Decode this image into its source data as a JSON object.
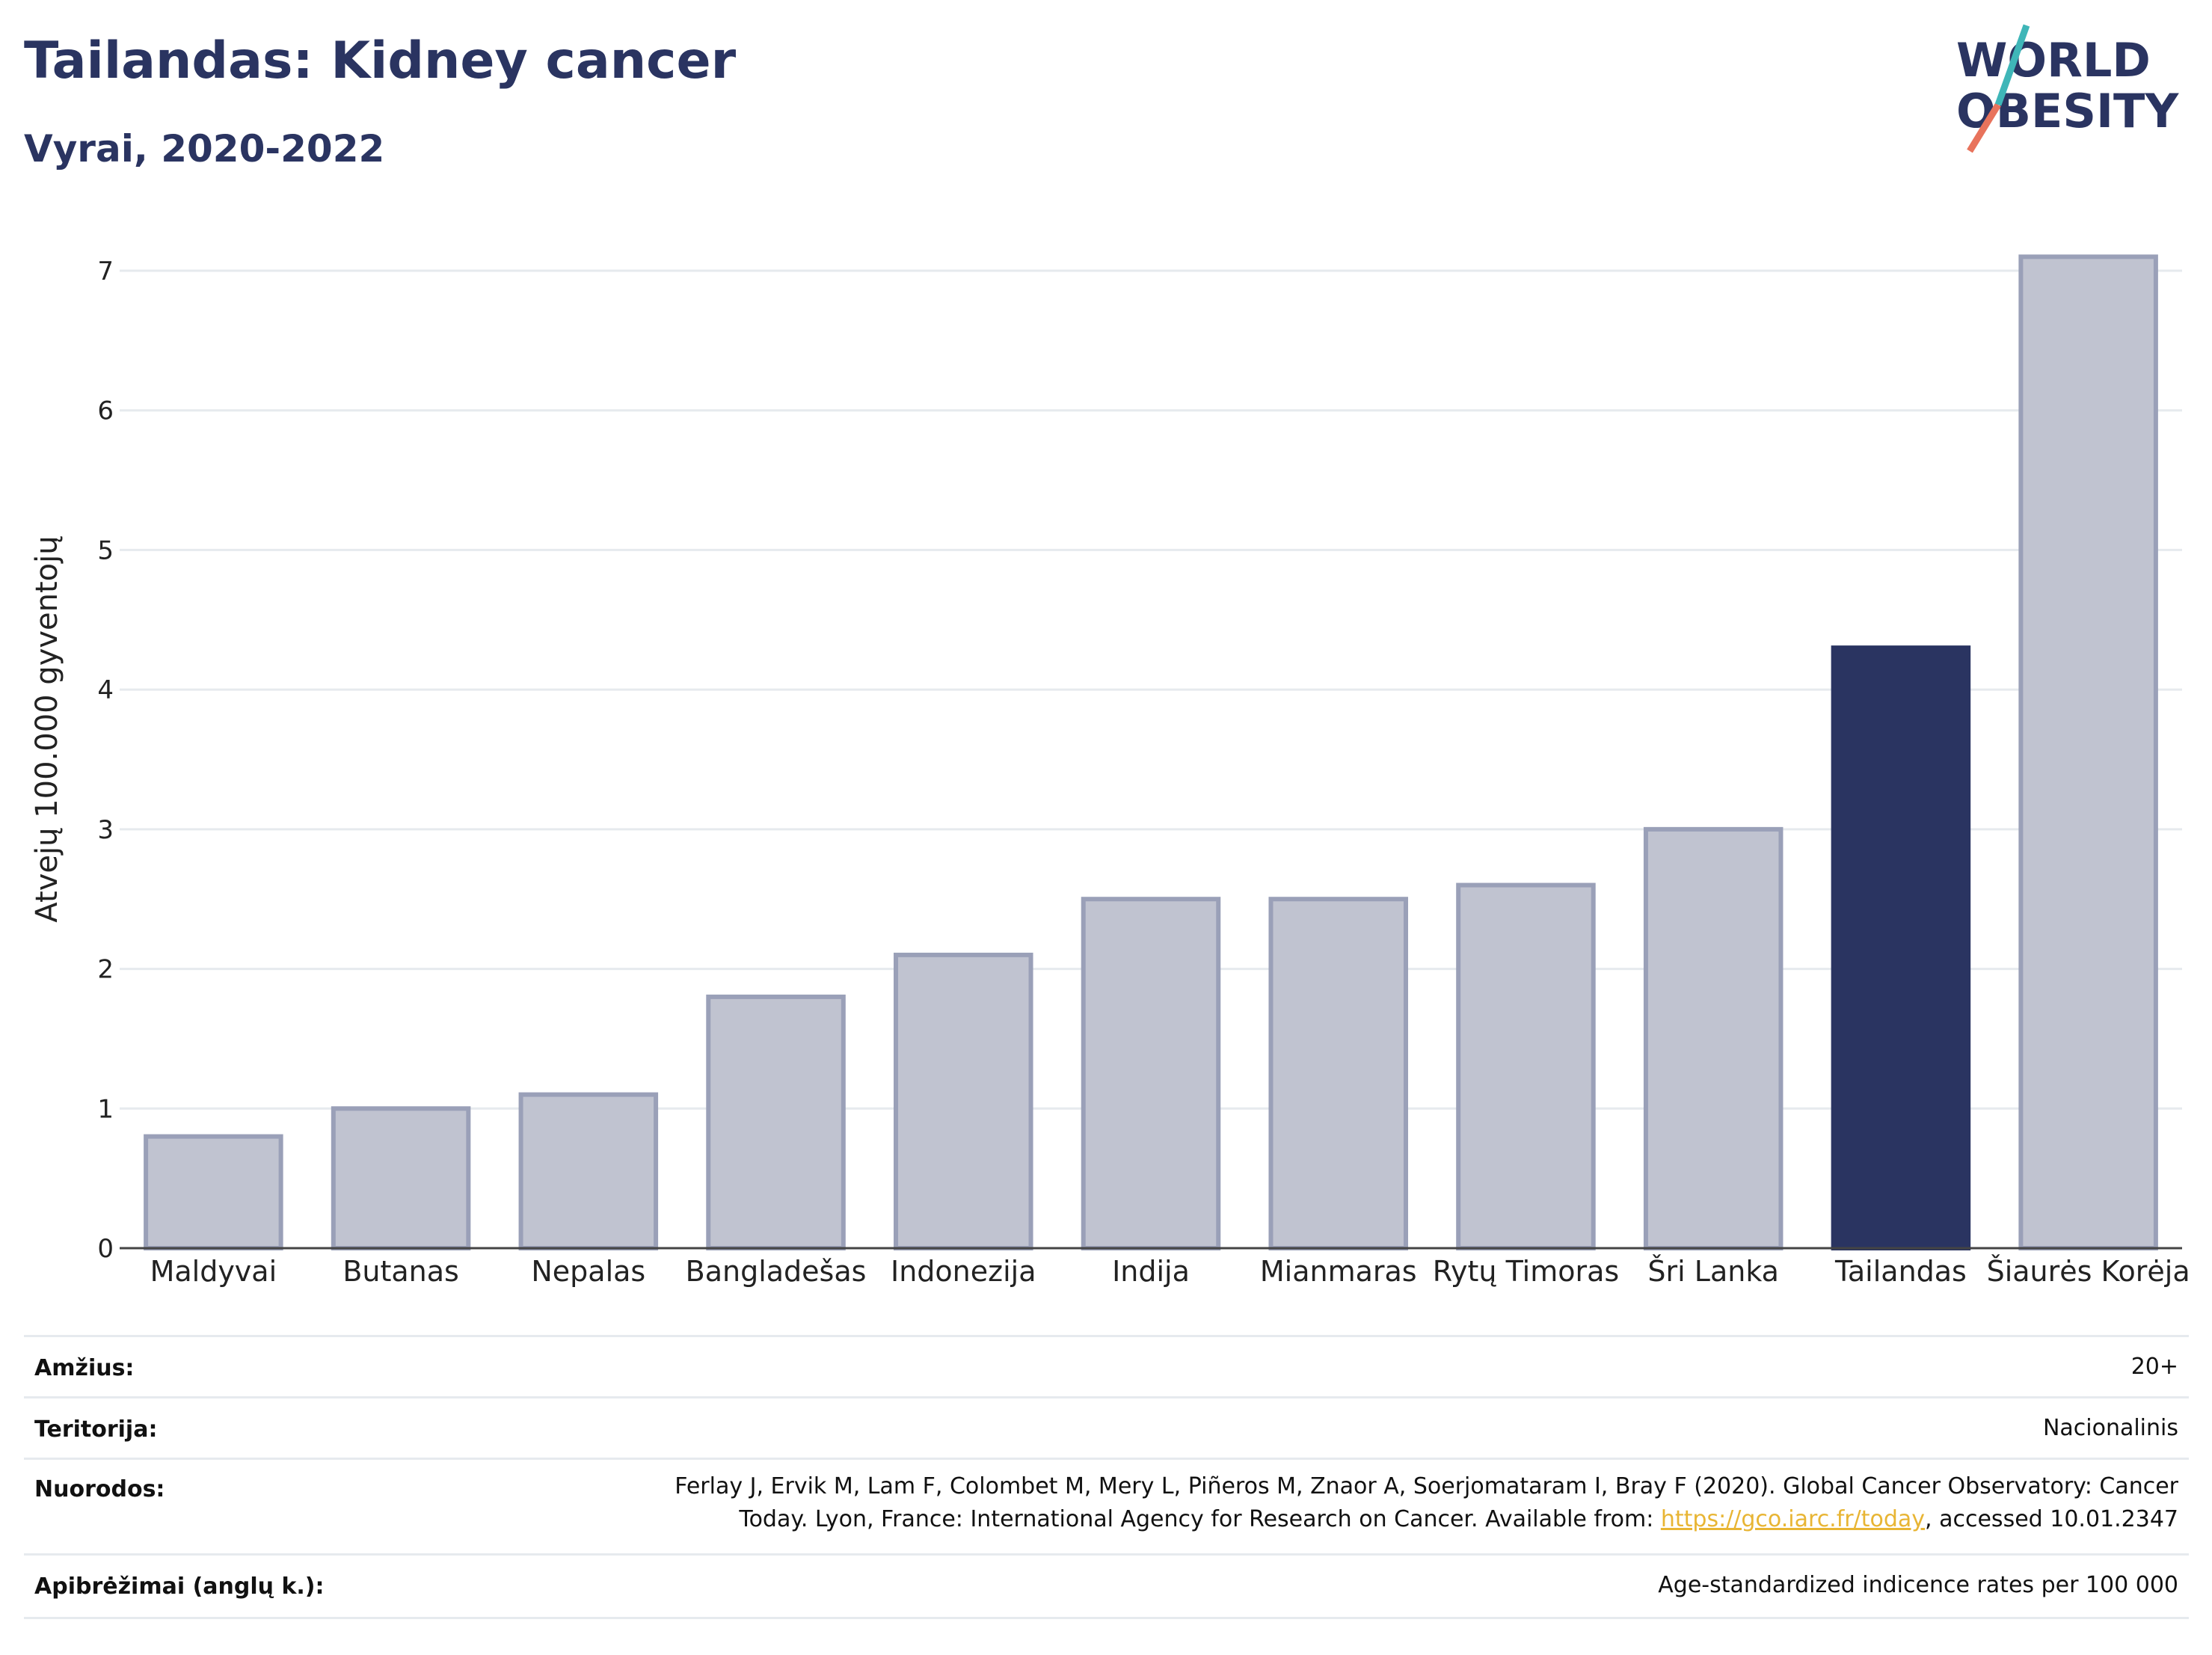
{
  "header": {
    "title": "Tailandas: Kidney cancer",
    "subtitle": "Vyrai, 2020-2022",
    "logo_line1": "WORLD",
    "logo_line2": "OBESITY"
  },
  "chart_data": {
    "type": "bar",
    "categories": [
      "Maldyvai",
      "Butanas",
      "Nepalas",
      "Bangladešas",
      "Indonezija",
      "Indija",
      "Mianmaras",
      "Rytų Timoras",
      "Šri Lanka",
      "Tailandas",
      "Šiaurės Korėja"
    ],
    "values": [
      0.8,
      1.0,
      1.1,
      1.8,
      2.1,
      2.5,
      2.5,
      2.6,
      3.0,
      4.3,
      7.1
    ],
    "highlight": "Tailandas",
    "ylabel": "Atvejų 100.000 gyventojų",
    "xlabel": "",
    "ylim": [
      0,
      7.4
    ],
    "yticks": [
      0,
      1,
      2,
      3,
      4,
      5,
      6,
      7
    ],
    "grid": true,
    "colors": {
      "bar": "#c0c3d0",
      "bar_border": "#9aa0b8",
      "highlight": "#2a3461",
      "grid": "#e6eaee"
    }
  },
  "meta": {
    "age_label": "Amžius:",
    "age_value": "20+",
    "territory_label": "Teritorija:",
    "territory_value": "Nacionalinis",
    "references_label": "Nuorodos:",
    "references_line1": "Ferlay J, Ervik M, Lam F, Colombet M, Mery L, Piñeros M, Znaor A, Soerjomataram I, Bray F (2020). Global Cancer Observatory: Cancer",
    "references_line2_pre": "Today. Lyon, France: International Agency for Research on Cancer. Available from: ",
    "references_link": "https://gco.iarc.fr/today",
    "references_line2_post": ", accessed 10.01.2347",
    "definitions_label": "Apibrėžimai (anglų k.):",
    "definitions_value": "Age-standardized indicence rates per 100 000"
  }
}
